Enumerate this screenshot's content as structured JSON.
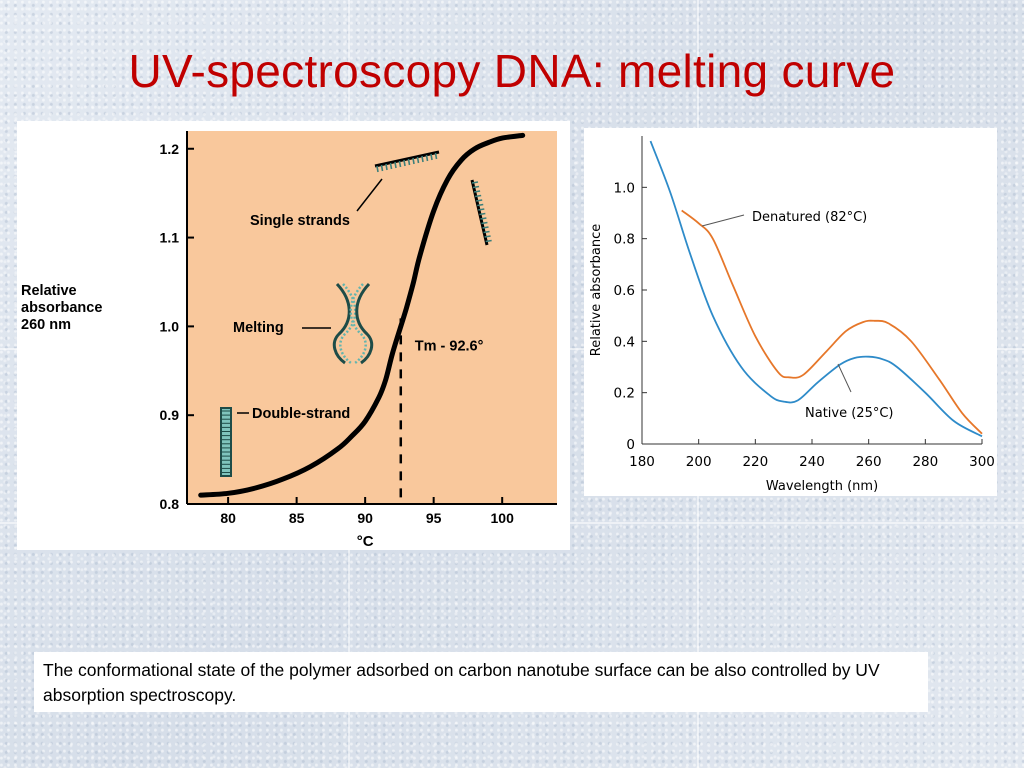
{
  "slide": {
    "title": "UV-spectroscopy DNA: melting curve",
    "caption": "The conformational state of the polymer adsorbed on carbon nanotube surface can be also controlled by UV absorption spectroscopy."
  },
  "chart_data": [
    {
      "type": "line",
      "title": "",
      "ylabel_lines": [
        "Relative",
        "absorbance",
        "260 nm"
      ],
      "xlabel": "°C",
      "xlim": [
        77,
        104
      ],
      "ylim": [
        0.8,
        1.22
      ],
      "xticks": [
        80,
        85,
        90,
        95,
        100
      ],
      "yticks": [
        0.8,
        0.9,
        1.0,
        1.1,
        1.2
      ],
      "ytick_labels": [
        "0.8",
        "0.9",
        "1.0",
        "1.1",
        "1.2"
      ],
      "background": "#f9c89c",
      "line_color": "#000000",
      "series": [
        {
          "x": [
            78,
            80,
            82,
            84,
            86,
            88,
            89,
            90,
            91,
            91.5,
            92,
            92.6,
            93,
            93.5,
            94,
            95,
            96,
            97,
            98,
            99,
            100,
            101.5
          ],
          "y": [
            0.81,
            0.812,
            0.818,
            0.828,
            0.842,
            0.862,
            0.876,
            0.893,
            0.92,
            0.94,
            0.97,
            1.0,
            1.02,
            1.048,
            1.08,
            1.13,
            1.165,
            1.187,
            1.2,
            1.207,
            1.212,
            1.215
          ]
        }
      ],
      "annotations": {
        "tm_label": "Tm - 92.6°",
        "tm_x": 92.6,
        "single_strands": "Single strands",
        "melting": "Melting",
        "double_strand": "Double-strand"
      }
    },
    {
      "type": "line",
      "title": "",
      "xlabel": "Wavelength (nm)",
      "ylabel": "Relative absorbance",
      "xlim": [
        180,
        300
      ],
      "ylim": [
        0,
        1.2
      ],
      "xticks": [
        180,
        200,
        220,
        240,
        260,
        280,
        300
      ],
      "yticks": [
        0,
        0.2,
        0.4,
        0.6,
        0.8,
        1.0
      ],
      "ytick_labels": [
        "0",
        "0.2",
        "0.4",
        "0.6",
        "0.8",
        "1.0"
      ],
      "series": [
        {
          "name": "Native (25°C)",
          "color": "#2e8bc9",
          "x": [
            183,
            190,
            197,
            205,
            215,
            225,
            230,
            235,
            242,
            250,
            255,
            260,
            265,
            270,
            280,
            290,
            300
          ],
          "y": [
            1.18,
            0.98,
            0.74,
            0.5,
            0.3,
            0.19,
            0.165,
            0.17,
            0.24,
            0.31,
            0.335,
            0.34,
            0.33,
            0.3,
            0.2,
            0.09,
            0.03
          ]
        },
        {
          "name": "Denatured (82°C)",
          "color": "#e6772a",
          "x": [
            194,
            200,
            205,
            212,
            220,
            228,
            232,
            237,
            245,
            252,
            258,
            262,
            267,
            275,
            285,
            293,
            300
          ],
          "y": [
            0.91,
            0.86,
            0.8,
            0.62,
            0.42,
            0.28,
            0.26,
            0.27,
            0.36,
            0.44,
            0.475,
            0.48,
            0.47,
            0.4,
            0.25,
            0.12,
            0.04
          ]
        }
      ]
    }
  ]
}
